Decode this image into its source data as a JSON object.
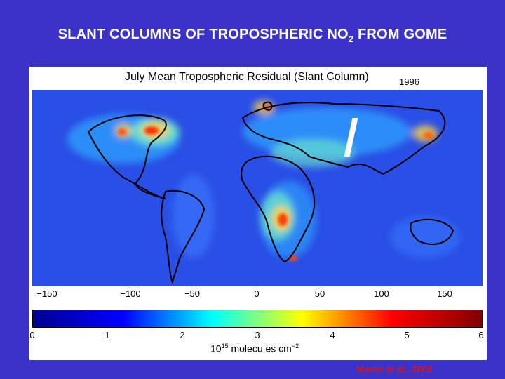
{
  "slide": {
    "title_main": "SLANT COLUMNS OF TROPOSPHERIC NO",
    "title_sub": "2",
    "title_end": " FROM GOME"
  },
  "map": {
    "title": "July Mean Tropospheric Residual (Slant Column)",
    "year": "1996",
    "lon_ticks": [
      "−150",
      "−100",
      "−50",
      "0",
      "50",
      "100",
      "150"
    ],
    "background_color": "#2244e0"
  },
  "colorbar": {
    "ticks": [
      "0",
      "1",
      "2",
      "3",
      "4",
      "5",
      "6"
    ],
    "label_base": "10",
    "label_exp": "15",
    "label_text": " molecu es cm",
    "label_exp2": "−2",
    "colors": [
      "#00008f",
      "#0000ff",
      "#00ffff",
      "#ffff00",
      "#ff0000",
      "#800000"
    ]
  },
  "citation": "Martin et al., 2002"
}
